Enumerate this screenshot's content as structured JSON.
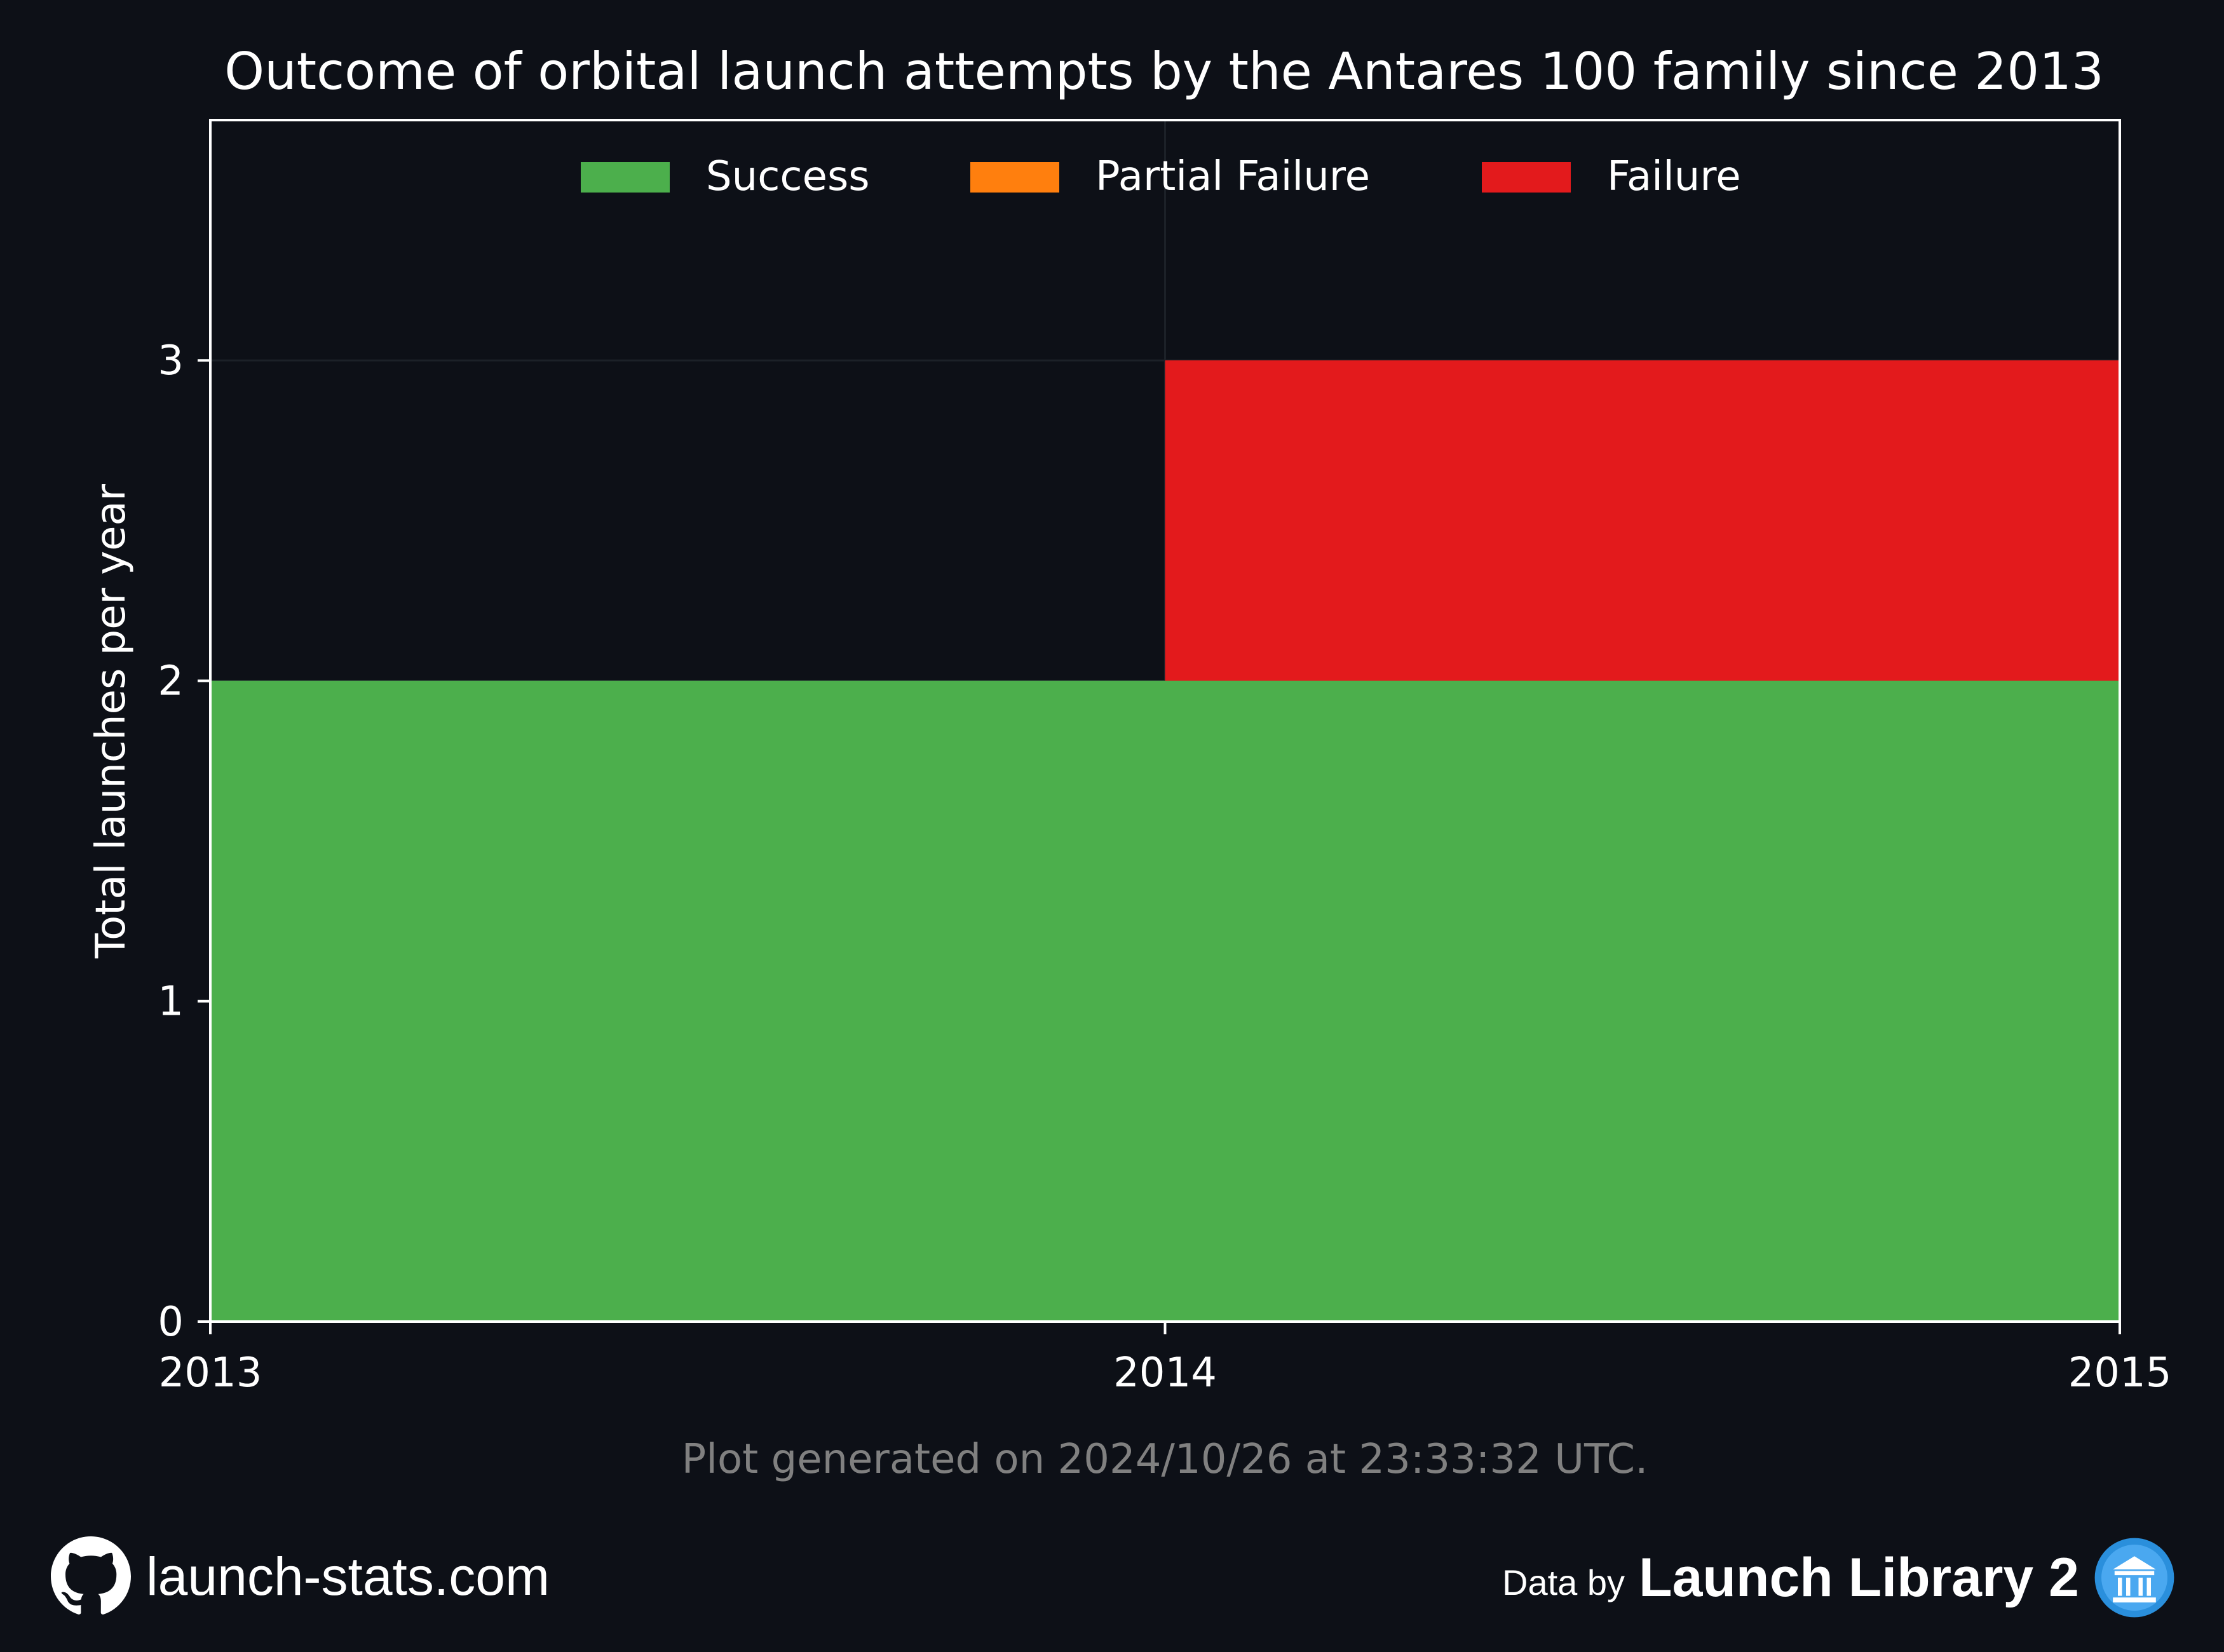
{
  "chart_data": {
    "type": "bar",
    "stacked": true,
    "title": "Outcome of orbital launch attempts by the Antares 100 family since 2013",
    "xlabel": "",
    "ylabel": "Total launches per year",
    "categories": [
      "2013",
      "2014"
    ],
    "x_ticks": [
      "2013",
      "2014",
      "2015"
    ],
    "x_range": [
      2013,
      2015
    ],
    "ylim": [
      0,
      3.75
    ],
    "y_ticks": [
      0,
      1,
      2,
      3
    ],
    "grid": true,
    "legend_position": "top-center",
    "series": [
      {
        "name": "Success",
        "color": "#4caf4c",
        "values": [
          2,
          2
        ]
      },
      {
        "name": "Partial Failure",
        "color": "#ff7f0e",
        "values": [
          0,
          0
        ]
      },
      {
        "name": "Failure",
        "color": "#e31a1c",
        "values": [
          0,
          1
        ]
      }
    ],
    "note": "Plot generated on 2024/10/26 at 23:33:32 UTC."
  },
  "footer": {
    "site": "launch-stats.com",
    "data_by": "Data by",
    "source": "Launch Library 2"
  },
  "icons": {
    "github": "github-icon",
    "launch_library": "launch-library-icon"
  },
  "colors": {
    "background": "#0d1017",
    "axis": "#ffffff",
    "note": "#808080"
  }
}
